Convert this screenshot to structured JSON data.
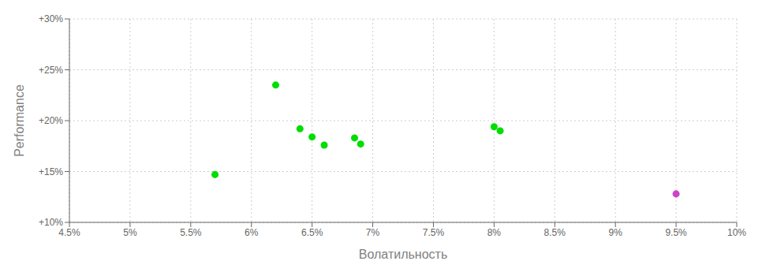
{
  "chart_data": {
    "type": "scatter",
    "xlabel": "Волатильность",
    "ylabel": "Performance",
    "xlim": [
      0.045,
      0.1
    ],
    "ylim": [
      0.1,
      0.3
    ],
    "xticks": [
      {
        "value": 0.045,
        "label": "4.5%"
      },
      {
        "value": 0.05,
        "label": "5%"
      },
      {
        "value": 0.055,
        "label": "5.5%"
      },
      {
        "value": 0.06,
        "label": "6%"
      },
      {
        "value": 0.065,
        "label": "6.5%"
      },
      {
        "value": 0.07,
        "label": "7%"
      },
      {
        "value": 0.075,
        "label": "7.5%"
      },
      {
        "value": 0.08,
        "label": "8%"
      },
      {
        "value": 0.085,
        "label": "8.5%"
      },
      {
        "value": 0.09,
        "label": "9%"
      },
      {
        "value": 0.095,
        "label": "9.5%"
      },
      {
        "value": 0.1,
        "label": "10%"
      }
    ],
    "yticks": [
      {
        "value": 0.1,
        "label": "+10%"
      },
      {
        "value": 0.15,
        "label": "+15%"
      },
      {
        "value": 0.2,
        "label": "+20%"
      },
      {
        "value": 0.25,
        "label": "+25%"
      },
      {
        "value": 0.3,
        "label": "+30%"
      }
    ],
    "grid": true,
    "series": [
      {
        "color": "#00dd00",
        "x": [
          0.062,
          0.064,
          0.065,
          0.066,
          0.0685,
          0.069,
          0.057,
          0.08,
          0.0805
        ],
        "values": [
          0.235,
          0.192,
          0.184,
          0.176,
          0.183,
          0.177,
          0.147,
          0.194,
          0.19
        ]
      },
      {
        "color": "#cc44cc",
        "x": [
          0.095
        ],
        "values": [
          0.128
        ]
      }
    ]
  }
}
